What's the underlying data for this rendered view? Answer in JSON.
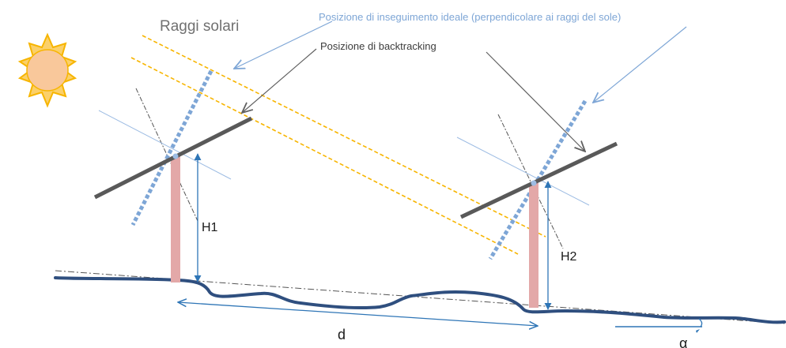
{
  "labels": {
    "sun_rays": "Raggi solari",
    "ideal_tracking": "Posizione di inseguimento ideale (perpendicolare ai raggi del sole)",
    "backtracking": "Posizione di backtracking",
    "h1": "H1",
    "h2": "H2",
    "distance": "d",
    "slope_angle": "α"
  },
  "colors": {
    "sun_fill": "#f9c89b",
    "sun_rays": "#f7b500",
    "ray_line": "#f7b500",
    "panel": "#595959",
    "ideal_panel": "#7ea6d6",
    "pole": "#e3a8a8",
    "ground": "#2f4f7f",
    "arrow": "#2e75b6",
    "label_blue": "#7ea6d6",
    "label_grey": "#707070"
  }
}
